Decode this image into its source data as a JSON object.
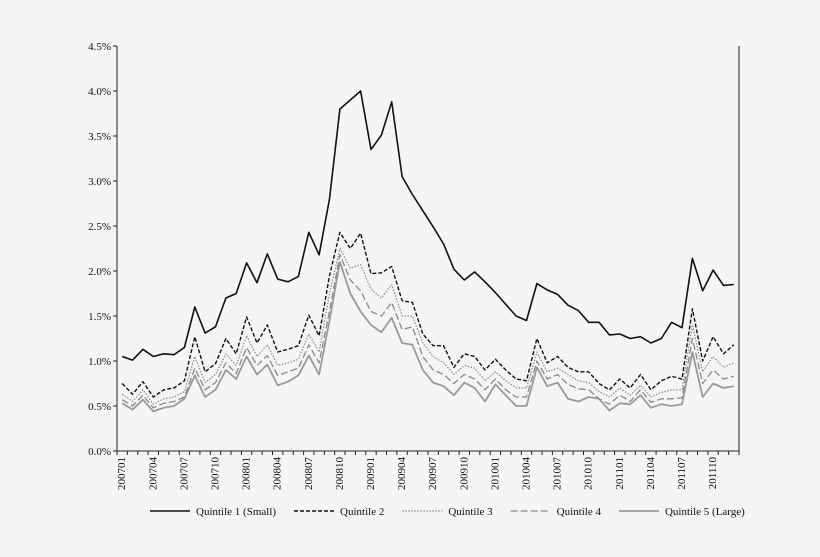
{
  "chart_data": {
    "type": "line",
    "title": "",
    "xlabel": "",
    "ylabel": "",
    "ylim": [
      0,
      4.5
    ],
    "y_ticks": [
      "0.0%",
      "0.5%",
      "1.0%",
      "1.5%",
      "2.0%",
      "2.5%",
      "3.0%",
      "3.5%",
      "4.0%",
      "4.5%"
    ],
    "x_tick_labels": [
      "200701",
      "200704",
      "200707",
      "200710",
      "200801",
      "200804",
      "200807",
      "200810",
      "200901",
      "200904",
      "200907",
      "200910",
      "201001",
      "201004",
      "201007",
      "201010",
      "201101",
      "201104",
      "201107",
      "201110"
    ],
    "x_start": "2007-01",
    "x_count": 60,
    "legend_position": "bottom",
    "grid": false,
    "series": [
      {
        "name": "Quintile 1 (Small)",
        "style": "solid-black",
        "values": [
          1.05,
          1.01,
          1.13,
          1.05,
          1.08,
          1.07,
          1.15,
          1.6,
          1.31,
          1.38,
          1.7,
          1.75,
          2.09,
          1.87,
          2.19,
          1.91,
          1.88,
          1.94,
          2.43,
          2.18,
          2.8,
          3.8,
          3.9,
          4.0,
          3.35,
          3.51,
          3.88,
          3.05,
          2.85,
          2.67,
          2.49,
          2.3,
          2.02,
          1.9,
          1.99,
          1.88,
          1.76,
          1.63,
          1.5,
          1.45,
          1.86,
          1.79,
          1.74,
          1.62,
          1.56,
          1.43,
          1.43,
          1.29,
          1.3,
          1.25,
          1.27,
          1.2,
          1.25,
          1.43,
          1.37,
          2.14,
          1.78,
          2.01,
          1.84,
          1.85
        ]
      },
      {
        "name": "Quintile 2",
        "style": "short-dash-black",
        "values": [
          0.75,
          0.63,
          0.77,
          0.6,
          0.68,
          0.7,
          0.78,
          1.27,
          0.88,
          0.97,
          1.25,
          1.08,
          1.49,
          1.2,
          1.4,
          1.1,
          1.13,
          1.17,
          1.51,
          1.28,
          1.95,
          2.43,
          2.25,
          2.42,
          1.97,
          1.98,
          2.05,
          1.67,
          1.65,
          1.3,
          1.17,
          1.17,
          0.93,
          1.08,
          1.05,
          0.9,
          1.02,
          0.9,
          0.8,
          0.78,
          1.25,
          0.98,
          1.05,
          0.93,
          0.88,
          0.88,
          0.75,
          0.68,
          0.8,
          0.7,
          0.85,
          0.68,
          0.78,
          0.83,
          0.8,
          1.58,
          1.0,
          1.27,
          1.08,
          1.18
        ]
      },
      {
        "name": "Quintile 3",
        "style": "dotted-gray",
        "values": [
          0.63,
          0.55,
          0.68,
          0.52,
          0.58,
          0.6,
          0.66,
          1.05,
          0.76,
          0.85,
          1.08,
          0.95,
          1.28,
          1.05,
          1.18,
          0.95,
          0.98,
          1.02,
          1.3,
          1.1,
          1.75,
          2.25,
          2.03,
          2.07,
          1.8,
          1.7,
          1.85,
          1.5,
          1.5,
          1.2,
          1.05,
          0.98,
          0.85,
          0.95,
          0.92,
          0.78,
          0.88,
          0.78,
          0.7,
          0.7,
          1.1,
          0.88,
          0.92,
          0.85,
          0.78,
          0.76,
          0.66,
          0.6,
          0.7,
          0.62,
          0.73,
          0.6,
          0.65,
          0.68,
          0.68,
          1.4,
          0.88,
          1.05,
          0.93,
          0.98
        ]
      },
      {
        "name": "Quintile 4",
        "style": "long-dash-gray",
        "values": [
          0.57,
          0.5,
          0.62,
          0.48,
          0.53,
          0.55,
          0.6,
          0.92,
          0.68,
          0.76,
          0.98,
          0.86,
          1.15,
          0.95,
          1.06,
          0.84,
          0.88,
          0.92,
          1.18,
          0.98,
          1.55,
          2.18,
          1.9,
          1.78,
          1.55,
          1.5,
          1.65,
          1.35,
          1.38,
          1.05,
          0.9,
          0.85,
          0.75,
          0.85,
          0.8,
          0.68,
          0.8,
          0.68,
          0.6,
          0.6,
          1.0,
          0.8,
          0.85,
          0.74,
          0.69,
          0.68,
          0.58,
          0.52,
          0.62,
          0.55,
          0.68,
          0.54,
          0.58,
          0.58,
          0.59,
          1.25,
          0.75,
          0.9,
          0.8,
          0.83
        ]
      },
      {
        "name": "Quintile 5 (Large)",
        "style": "solid-gray",
        "values": [
          0.53,
          0.46,
          0.57,
          0.44,
          0.48,
          0.5,
          0.58,
          0.84,
          0.6,
          0.68,
          0.9,
          0.8,
          1.05,
          0.85,
          0.96,
          0.73,
          0.77,
          0.84,
          1.06,
          0.85,
          1.45,
          2.1,
          1.75,
          1.55,
          1.4,
          1.32,
          1.48,
          1.2,
          1.18,
          0.9,
          0.76,
          0.72,
          0.62,
          0.76,
          0.7,
          0.55,
          0.74,
          0.62,
          0.5,
          0.5,
          0.93,
          0.72,
          0.76,
          0.58,
          0.55,
          0.6,
          0.58,
          0.45,
          0.53,
          0.52,
          0.62,
          0.48,
          0.52,
          0.5,
          0.52,
          1.1,
          0.6,
          0.75,
          0.7,
          0.72
        ]
      }
    ]
  }
}
